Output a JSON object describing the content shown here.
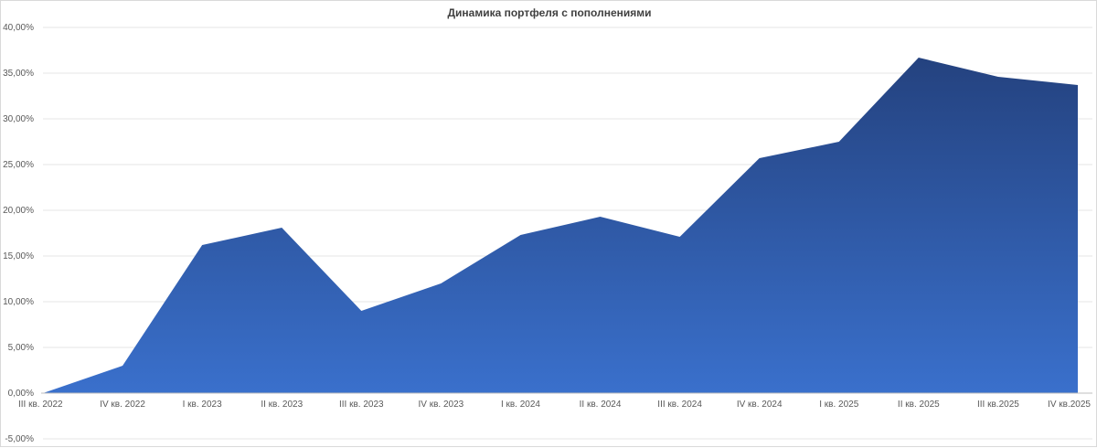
{
  "chart_data": {
    "type": "area",
    "title": "Динамика портфеля с пополнениями",
    "xlabel": "",
    "ylabel": "",
    "categories": [
      "III  кв. 2022",
      "IV кв. 2022",
      "I кв. 2023",
      "II кв. 2023",
      "III  кв. 2023",
      "IV кв. 2023",
      "I кв. 2024",
      "II кв. 2024",
      "III  кв. 2024",
      "IV кв. 2024",
      "I кв. 2025",
      "II кв. 2025",
      "III  кв.2025",
      "IV кв.2025"
    ],
    "values": [
      0.0,
      3.0,
      16.2,
      18.1,
      9.0,
      12.0,
      17.3,
      19.3,
      17.1,
      25.7,
      27.5,
      36.7,
      34.6,
      33.7
    ],
    "ylim": [
      -5,
      40
    ],
    "yticks": [
      -5,
      0,
      5,
      10,
      15,
      20,
      25,
      30,
      35,
      40
    ],
    "ytick_labels": [
      "-5,00%",
      "0,00%",
      "5,00%",
      "10,00%",
      "15,00%",
      "20,00%",
      "25,00%",
      "30,00%",
      "35,00%",
      "40,00%"
    ],
    "grid": true,
    "legend": "none",
    "colors": {
      "fill_top": "#24427f",
      "fill_bottom": "#3a70cc",
      "grid": "#e6e6e6",
      "axis": "#bfbfbf",
      "text": "#595959",
      "title": "#404040"
    }
  }
}
